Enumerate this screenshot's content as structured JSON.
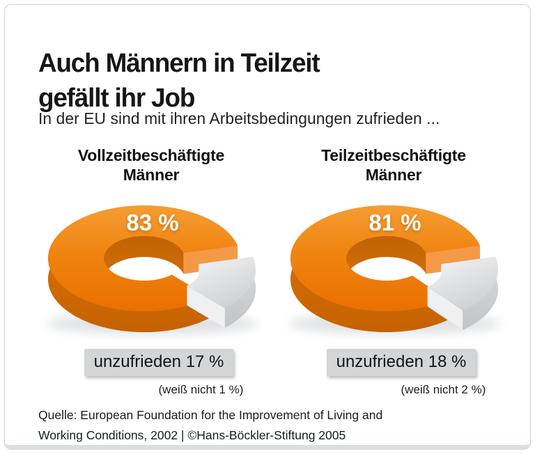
{
  "header": {
    "title_line1": "Auch Männern in Teilzeit",
    "title_line2": "gefällt ihr Job",
    "subtitle": "In der EU sind mit ihren Arbeitsbedingungen zufrieden ..."
  },
  "footer": {
    "source_line1": "Quelle: European Foundation for the Improvement of Living and",
    "source_line2": "Working Conditions, 2002 | ©Hans-Böckler-Stiftung 2005"
  },
  "colors": {
    "orange": "#EE7D06",
    "orange_dark": "#C96501",
    "gray_slice": "#D8D9DB",
    "label_bg": "#D4D5D7"
  },
  "chart_data": {
    "type": "pie",
    "variant": "3d-exploded-donut",
    "title": "Auch Männern in Teilzeit gefällt ihr Job",
    "subtitle": "In der EU sind mit ihren Arbeitsbedingungen zufrieden ...",
    "unit": "%",
    "legend_position": "none",
    "charts": [
      {
        "label": "Vollzeitbeschäftigte Männer",
        "value_label": "83 %",
        "slices": [
          {
            "name": "zufrieden",
            "value": 83,
            "color": "#EE7D06"
          },
          {
            "name": "unzufrieden",
            "value": 17,
            "color": "#D8D9DB"
          }
        ],
        "unzufrieden_label": "unzufrieden 17 %",
        "note": "(weiß nicht 1 %)"
      },
      {
        "label": "Teilzeitbeschäftigte Männer",
        "value_label": "81 %",
        "slices": [
          {
            "name": "zufrieden",
            "value": 81,
            "color": "#EE7D06"
          },
          {
            "name": "unzufrieden",
            "value": 18,
            "color": "#D8D9DB"
          }
        ],
        "unzufrieden_label": "unzufrieden 18 %",
        "note": "(weiß nicht 2 %)"
      }
    ]
  }
}
